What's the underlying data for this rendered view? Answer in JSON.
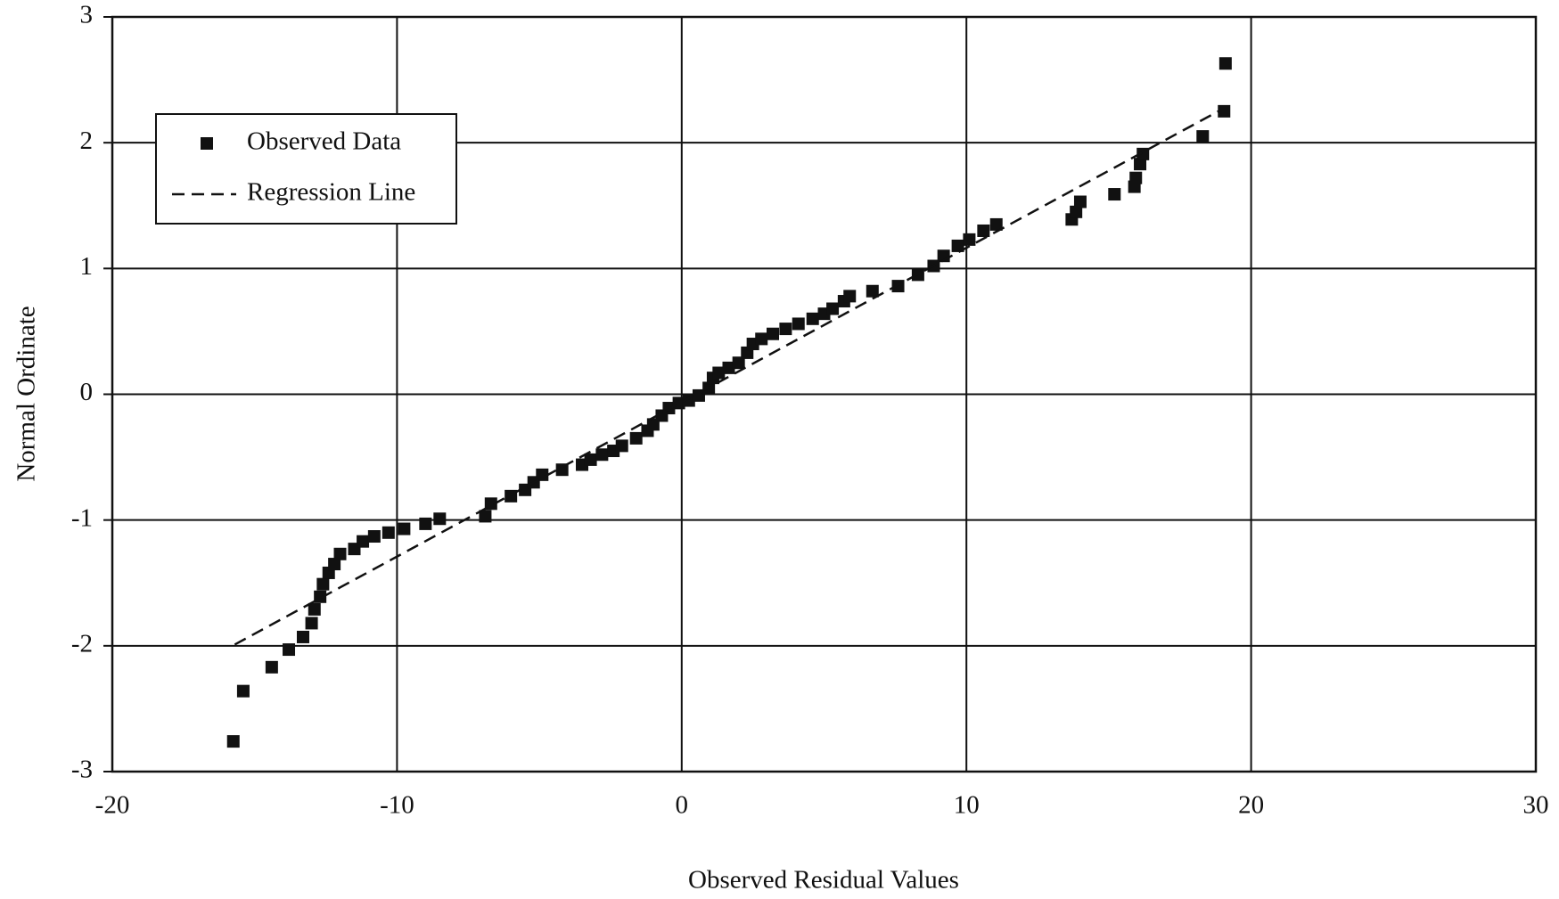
{
  "chart_data": {
    "type": "scatter",
    "xlabel": "Observed Residual Values",
    "ylabel": "Normal Ordinate",
    "xlim": [
      -20,
      30
    ],
    "xticks": [
      -20,
      -10,
      0,
      10,
      20,
      30
    ],
    "ylim": [
      -3,
      3
    ],
    "yticks": [
      -3,
      -2,
      -1,
      0,
      1,
      2,
      3
    ],
    "grid": true,
    "legend": "upper left",
    "series": [
      {
        "name": "Observed Data",
        "color": "#111111",
        "kind": "points",
        "x": [
          -15.75,
          -15.4,
          -14.4,
          -13.8,
          -13.3,
          -13.0,
          -12.9,
          -12.7,
          -12.6,
          -12.4,
          -12.2,
          -12.0,
          -11.5,
          -11.2,
          -10.8,
          -10.3,
          -9.75,
          -9.0,
          -8.5,
          -6.9,
          -6.7,
          -6.0,
          -5.5,
          -5.2,
          -4.9,
          -4.2,
          -3.5,
          -3.2,
          -2.8,
          -2.4,
          -2.1,
          -1.6,
          -1.2,
          -1.0,
          -0.7,
          -0.45,
          -0.1,
          0.25,
          0.6,
          0.95,
          1.1,
          1.3,
          1.65,
          2.0,
          2.3,
          2.5,
          2.8,
          3.2,
          3.65,
          4.1,
          4.6,
          5.0,
          5.3,
          5.7,
          5.9,
          6.7,
          7.6,
          8.3,
          8.85,
          9.2,
          9.7,
          10.1,
          10.6,
          11.05,
          13.7,
          13.85,
          14.0,
          15.2,
          15.9,
          15.95,
          16.1,
          16.2,
          18.3,
          19.05,
          19.1
        ],
        "y": [
          -2.76,
          -2.36,
          -2.17,
          -2.03,
          -1.93,
          -1.82,
          -1.71,
          -1.61,
          -1.51,
          -1.42,
          -1.35,
          -1.27,
          -1.23,
          -1.17,
          -1.13,
          -1.1,
          -1.07,
          -1.03,
          -0.99,
          -0.97,
          -0.87,
          -0.81,
          -0.76,
          -0.7,
          -0.64,
          -0.6,
          -0.56,
          -0.52,
          -0.48,
          -0.45,
          -0.41,
          -0.35,
          -0.29,
          -0.24,
          -0.17,
          -0.11,
          -0.07,
          -0.05,
          -0.01,
          0.05,
          0.13,
          0.17,
          0.21,
          0.25,
          0.33,
          0.4,
          0.44,
          0.48,
          0.52,
          0.56,
          0.6,
          0.64,
          0.68,
          0.74,
          0.78,
          0.82,
          0.86,
          0.95,
          1.02,
          1.1,
          1.18,
          1.23,
          1.3,
          1.35,
          1.39,
          1.45,
          1.53,
          1.59,
          1.65,
          1.72,
          1.83,
          1.91,
          2.05,
          2.25,
          2.63
        ]
      },
      {
        "name": "Regression Line",
        "color": "#111111",
        "kind": "dashed-line",
        "x": [
          -15.7,
          18.85
        ],
        "y": [
          -1.99,
          2.25
        ]
      }
    ]
  }
}
